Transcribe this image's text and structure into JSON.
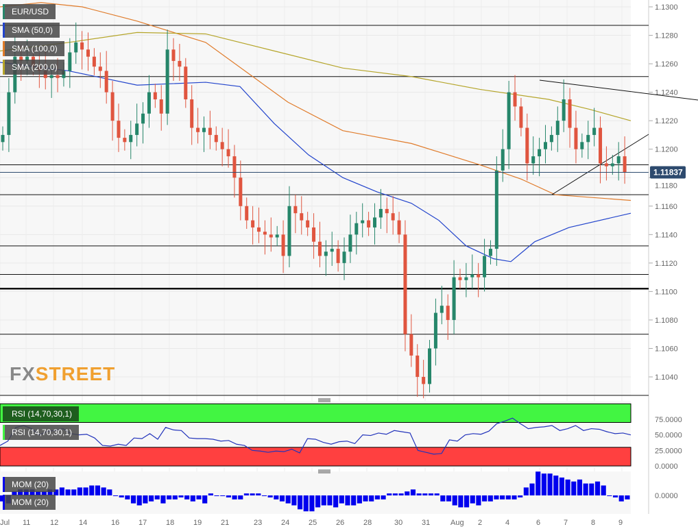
{
  "chart_data": [
    {
      "type": "candlestick",
      "symbol": "EUR/USD",
      "last_price": "1.11837",
      "ylim": [
        1.1025,
        1.1305
      ],
      "y_ticks": [
        "1.1300",
        "1.1280",
        "1.1260",
        "1.1240",
        "1.1220",
        "1.1200",
        "1.1180",
        "1.1160",
        "1.1140",
        "1.1120",
        "1.1100",
        "1.1080",
        "1.1060",
        "1.1040"
      ],
      "x_ticks": [
        "Jul",
        "11",
        "12",
        "14",
        "16",
        "17",
        "18",
        "19",
        "21",
        "23",
        "24",
        "25",
        "26",
        "28",
        "30",
        "31",
        "Aug",
        "2",
        "4",
        "6",
        "7",
        "8",
        "9"
      ],
      "closes": [
        1.121,
        1.124,
        1.1265,
        1.1262,
        1.1265,
        1.1258,
        1.1255,
        1.125,
        1.1252,
        1.125,
        1.1255,
        1.1268,
        1.1275,
        1.127,
        1.1265,
        1.1258,
        1.1255,
        1.124,
        1.122,
        1.1208,
        1.1205,
        1.121,
        1.1218,
        1.1225,
        1.124,
        1.1235,
        1.1225,
        1.127,
        1.1262,
        1.1258,
        1.1235,
        1.1215,
        1.1212,
        1.1215,
        1.121,
        1.1205,
        1.12,
        1.1195,
        1.118,
        1.116,
        1.115,
        1.1145,
        1.1142,
        1.114,
        1.1138,
        1.114,
        1.1125,
        1.116,
        1.1155,
        1.115,
        1.1145,
        1.1135,
        1.1125,
        1.1128,
        1.113,
        1.112,
        1.1128,
        1.114,
        1.1148,
        1.115,
        1.1145,
        1.1152,
        1.1158,
        1.1155,
        1.115,
        1.114,
        1.107,
        1.1055,
        1.104,
        1.1035,
        1.106,
        1.1085,
        1.109,
        1.108,
        1.111,
        1.1108,
        1.111,
        1.1112,
        1.111,
        1.1125,
        1.113,
        1.1185,
        1.12,
        1.124,
        1.123,
        1.1215,
        1.119,
        1.1195,
        1.12,
        1.1205,
        1.121,
        1.122,
        1.1235,
        1.1215,
        1.12,
        1.1205,
        1.121,
        1.1215,
        1.119,
        1.1188,
        1.119,
        1.1195,
        1.11837
      ],
      "sma": [
        {
          "name": "SMA (50,0)",
          "color": "#2244cc",
          "points": [
            [
              0,
              1.1261
            ],
            [
              100,
              1.1255
            ],
            [
              200,
              1.1245
            ],
            [
              300,
              1.1247
            ],
            [
              350,
              1.1244
            ],
            [
              400,
              1.1218
            ],
            [
              450,
              1.1196
            ],
            [
              500,
              1.118
            ],
            [
              550,
              1.117
            ],
            [
              600,
              1.1162
            ],
            [
              640,
              1.115
            ],
            [
              680,
              1.1132
            ],
            [
              720,
              1.1123
            ],
            [
              745,
              1.1121
            ],
            [
              780,
              1.1135
            ],
            [
              830,
              1.1145
            ],
            [
              920,
              1.1155
            ]
          ]
        },
        {
          "name": "SMA (100,0)",
          "color": "#e07b2a",
          "points": [
            [
              0,
              1.13
            ],
            [
              60,
              1.1303
            ],
            [
              120,
              1.13
            ],
            [
              200,
              1.129
            ],
            [
              300,
              1.1275
            ],
            [
              420,
              1.1233
            ],
            [
              500,
              1.1213
            ],
            [
              600,
              1.1204
            ],
            [
              700,
              1.1189
            ],
            [
              760,
              1.1179
            ],
            [
              810,
              1.1168
            ],
            [
              920,
              1.1164
            ]
          ]
        },
        {
          "name": "SMA (200,0)",
          "color": "#b5a52a",
          "points": [
            [
              0,
              1.1269
            ],
            [
              100,
              1.1275
            ],
            [
              200,
              1.1282
            ],
            [
              300,
              1.1281
            ],
            [
              400,
              1.1269
            ],
            [
              500,
              1.1257
            ],
            [
              600,
              1.1251
            ],
            [
              700,
              1.1242
            ],
            [
              800,
              1.1235
            ],
            [
              860,
              1.1228
            ],
            [
              920,
              1.122
            ]
          ]
        }
      ],
      "horizontal_levels": [
        1.1287,
        1.1251,
        1.1189,
        1.1168,
        1.1132,
        1.1112,
        1.1102,
        1.107,
        1.1027
      ]
    },
    {
      "type": "line",
      "name": "RSI (14,70,30,1)",
      "overbought": 70,
      "oversold": 30,
      "y_ticks": [
        "75.0000",
        "50.0000",
        "25.0000",
        "0.0000"
      ],
      "values": [
        33,
        40,
        62,
        65,
        60,
        50,
        56,
        57,
        60,
        52,
        50,
        51,
        45,
        33,
        32,
        35,
        33,
        45,
        44,
        52,
        43,
        62,
        58,
        57,
        45,
        44,
        44,
        43,
        40,
        41,
        35,
        33,
        25,
        24,
        22,
        24,
        23,
        27,
        21,
        44,
        43,
        38,
        35,
        39,
        40,
        36,
        50,
        49,
        53,
        51,
        57,
        55,
        53,
        25,
        22,
        19,
        20,
        42,
        40,
        50,
        52,
        51,
        56,
        68,
        72,
        77,
        68,
        60,
        62,
        63,
        65,
        57,
        60,
        65,
        57,
        60,
        59,
        55,
        52,
        53,
        50
      ]
    },
    {
      "type": "bar",
      "name": "MOM (20)",
      "y_ticks": [
        "0.0000"
      ],
      "values": [
        -3,
        -4,
        2,
        3,
        3,
        3,
        2,
        2,
        3,
        3,
        4,
        3,
        3,
        4,
        4,
        5,
        5,
        4,
        3,
        0,
        -1,
        -2,
        -4,
        -5,
        -4,
        -3,
        -2,
        -4,
        -2,
        -2,
        -1,
        -2,
        -3,
        -2,
        -4,
        1,
        0,
        0,
        -1,
        -2,
        -2,
        1,
        1,
        1,
        0,
        -1,
        -2,
        -3,
        -4,
        -5,
        -7,
        -8,
        -8,
        -6,
        -5,
        -5,
        -6,
        -4,
        -5,
        -5,
        -4,
        -3,
        -3,
        -2,
        -2,
        1,
        1,
        1,
        2,
        3,
        1,
        1,
        1,
        1,
        -3,
        -3,
        -5,
        -6,
        -6,
        -4,
        -5,
        -3,
        -3,
        -2,
        -2,
        -2,
        -2,
        -1,
        4,
        6,
        12,
        11,
        11,
        10,
        9,
        8,
        7,
        8,
        6,
        6,
        7,
        5,
        0,
        -1,
        -3,
        -2
      ]
    }
  ],
  "labels": {
    "symbol": "EUR/USD",
    "sma50": "SMA (50,0)",
    "sma100": "SMA (100,0)",
    "sma200": "SMA (200,0)",
    "rsi": "RSI (14,70,30,1)",
    "rsi2": "RSI (14,70,30,1)",
    "mom": "MOM (20)",
    "mom2": "MOM (20)"
  },
  "logo": "FXSTREET",
  "colors": {
    "up": "#26866a",
    "down": "#e0553f",
    "rsi_line": "#2233bb",
    "overbought": "#42f542",
    "oversold": "#ff4040",
    "mom": "#0000ee",
    "price_badge": "#2d4a6e"
  }
}
